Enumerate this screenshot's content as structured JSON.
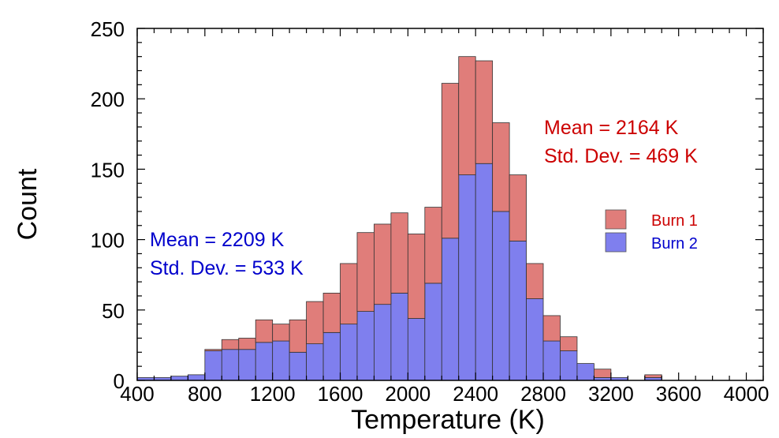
{
  "chart_data": {
    "type": "bar",
    "stacked": true,
    "bin_width": 100,
    "x": [
      450,
      550,
      650,
      750,
      850,
      950,
      1050,
      1150,
      1250,
      1350,
      1450,
      1550,
      1650,
      1750,
      1850,
      1950,
      2050,
      2150,
      2250,
      2350,
      2450,
      2550,
      2650,
      2750,
      2850,
      2950,
      3050,
      3150,
      3250,
      3350,
      3450,
      3550,
      3650,
      3750,
      3850,
      3950
    ],
    "series": [
      {
        "name": "Burn 2",
        "color": "#7f7fee",
        "values": [
          2,
          2,
          3,
          4,
          21,
          22,
          22,
          27,
          28,
          20,
          26,
          34,
          40,
          49,
          54,
          62,
          44,
          69,
          101,
          146,
          154,
          120,
          99,
          58,
          28,
          21,
          12,
          2,
          2,
          0,
          2,
          0,
          0,
          0,
          0,
          0
        ]
      },
      {
        "name": "Burn 1",
        "color": "#e07d7a",
        "values": [
          0,
          0,
          0,
          0,
          1,
          7,
          8,
          16,
          12,
          23,
          30,
          28,
          43,
          56,
          57,
          57,
          60,
          54,
          110,
          84,
          73,
          63,
          47,
          25,
          18,
          10,
          0,
          6,
          0,
          0,
          2,
          0,
          0,
          0,
          0,
          0
        ]
      }
    ],
    "title": "",
    "xlabel": "Temperature (K)",
    "ylabel": "Count",
    "xlim": [
      400,
      4100
    ],
    "ylim": [
      0,
      250
    ],
    "x_ticks": [
      400,
      800,
      1200,
      1600,
      2000,
      2400,
      2800,
      3200,
      3600,
      4000
    ],
    "y_ticks": [
      0,
      50,
      100,
      150,
      200,
      250
    ],
    "x_minor_step": 100,
    "y_minor_step": 10,
    "grid": false,
    "legend": {
      "position": "right",
      "entries": [
        {
          "label": "Burn 1",
          "color": "#e07d7a",
          "text_color": "#cc0000"
        },
        {
          "label": "Burn 2",
          "color": "#7f7fee",
          "text_color": "#0000cc"
        }
      ]
    },
    "annotations": [
      {
        "series": "Burn 1",
        "color": "#cc0000",
        "lines": [
          "Mean = 2164 K",
          "Std. Dev. = 469 K"
        ]
      },
      {
        "series": "Burn 2",
        "color": "#0000cc",
        "lines": [
          "Mean = 2209 K",
          "Std. Dev. = 533 K"
        ]
      }
    ]
  }
}
